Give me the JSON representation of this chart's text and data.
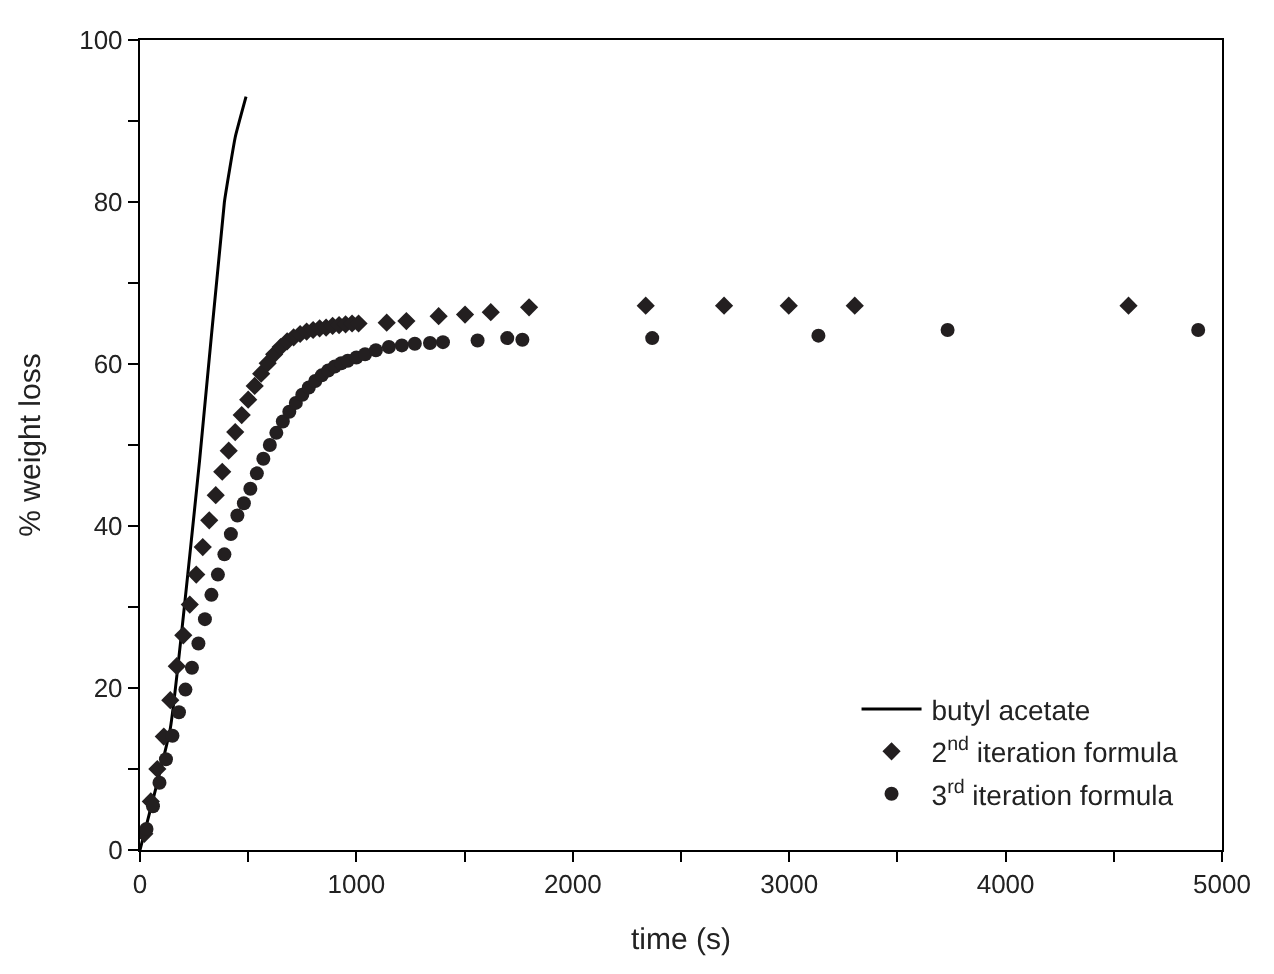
{
  "chart_data": {
    "type": "scatter",
    "xlabel": "time (s)",
    "ylabel": "% weight loss",
    "xlim": [
      0,
      5000
    ],
    "ylim": [
      0,
      100
    ],
    "xticks": [
      0,
      {
        "value": 500,
        "label": null
      },
      1000,
      {
        "value": 1500,
        "label": null
      },
      2000,
      {
        "value": 2500,
        "label": null
      },
      3000,
      {
        "value": 3500,
        "label": null
      },
      4000,
      {
        "value": 4500,
        "label": null
      },
      5000
    ],
    "yticks": [
      0,
      {
        "value": 10,
        "label": null
      },
      20,
      {
        "value": 30,
        "label": null
      },
      40,
      {
        "value": 50,
        "label": null
      },
      60,
      {
        "value": 70,
        "label": null
      },
      80,
      {
        "value": 90,
        "label": null
      },
      100
    ],
    "legend": "bottom right",
    "series": [
      {
        "name": "butyl acetate",
        "type": "line",
        "color": "#000000",
        "line_style": "solid",
        "marker": "none",
        "x": [
          0,
          140,
          275,
          390,
          440,
          490
        ],
        "values": [
          0,
          15,
          48,
          80,
          88,
          93
        ]
      },
      {
        "name": "2$^{nd}$ iteration formula",
        "color": "#231f20",
        "marker": "diamond",
        "x": [
          20,
          50,
          80,
          110,
          140,
          170,
          200,
          230,
          260,
          290,
          320,
          350,
          380,
          410,
          440,
          470,
          500,
          530,
          560,
          590,
          620,
          650,
          680,
          710,
          740,
          770,
          800,
          830,
          860,
          890,
          920,
          950,
          980,
          1010,
          1140,
          1231,
          1380,
          1502,
          1621,
          1798,
          2337,
          2699,
          2998,
          3303,
          4568
        ],
        "values": [
          2,
          6,
          10,
          14,
          18.5,
          22.7,
          26.5,
          30.3,
          34,
          37.4,
          40.7,
          43.8,
          46.7,
          49.3,
          51.6,
          53.7,
          55.6,
          57.3,
          58.8,
          60.1,
          61.2,
          62.1,
          62.8,
          63.3,
          63.7,
          64,
          64.2,
          64.4,
          64.5,
          64.7,
          64.8,
          64.9,
          65,
          65,
          65.1,
          65.3,
          65.9,
          66.1,
          66.4,
          67,
          67.2,
          67.2,
          67.2,
          67.2,
          67.2
        ]
      },
      {
        "name": "3$^{rd}$ iteration formula",
        "color": "#231f20",
        "marker": "circle",
        "x": [
          30,
          60,
          90,
          120,
          150,
          180,
          210,
          240,
          270,
          300,
          330,
          360,
          390,
          420,
          450,
          480,
          510,
          540,
          570,
          600,
          630,
          660,
          690,
          720,
          750,
          780,
          810,
          840,
          870,
          900,
          930,
          960,
          1000,
          1040,
          1090,
          1150,
          1210,
          1270,
          1340,
          1400,
          1560,
          1697,
          1767,
          2367,
          3135,
          3732,
          4890
        ],
        "values": [
          2.6,
          5.4,
          8.3,
          11.2,
          14.1,
          17,
          19.8,
          22.5,
          25.5,
          28.5,
          31.5,
          34,
          36.5,
          39,
          41.3,
          42.8,
          44.6,
          46.5,
          48.3,
          50,
          51.5,
          52.9,
          54.1,
          55.2,
          56.2,
          57.1,
          57.9,
          58.6,
          59.2,
          59.7,
          60.1,
          60.4,
          60.8,
          61.2,
          61.7,
          62.1,
          62.3,
          62.5,
          62.6,
          62.7,
          62.9,
          63.2,
          63,
          63.2,
          63.5,
          64.2,
          64.2
        ]
      }
    ]
  }
}
